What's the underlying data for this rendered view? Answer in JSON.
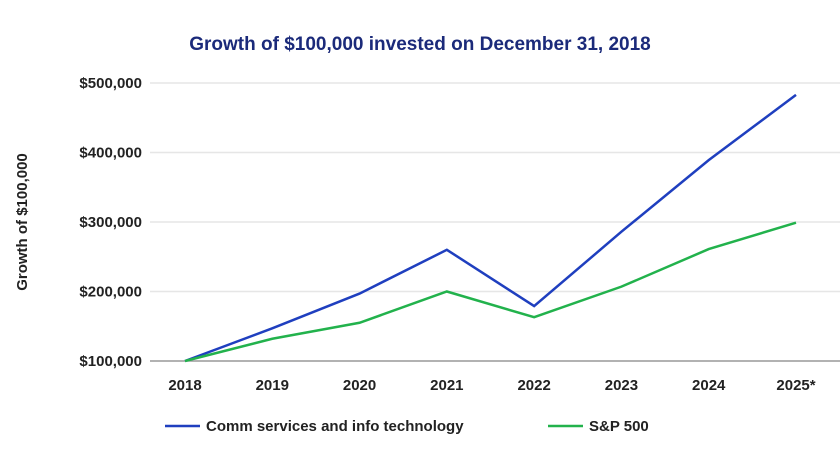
{
  "chart_data": {
    "type": "line",
    "title": "Growth of $100,000 invested on December 31, 2018",
    "xlabel": "",
    "ylabel": "Growth of $100,000",
    "categories": [
      "2018",
      "2019",
      "2020",
      "2021",
      "2022",
      "2023",
      "2024",
      "2025*"
    ],
    "ylim": [
      100000,
      500000
    ],
    "yticks": [
      100000,
      200000,
      300000,
      400000,
      500000
    ],
    "ytick_labels": [
      "$100,000",
      "$200,000",
      "$300,000",
      "$400,000",
      "$500,000"
    ],
    "grid": true,
    "legend_position": "bottom",
    "series": [
      {
        "name": "Comm services and info technology",
        "color": "#1f3fbf",
        "values": [
          100000,
          147000,
          197000,
          260000,
          179000,
          286000,
          389000,
          483000
        ]
      },
      {
        "name": "S&P 500",
        "color": "#22b24c",
        "values": [
          100000,
          132000,
          155000,
          200000,
          163000,
          207000,
          261000,
          299000
        ]
      }
    ]
  }
}
